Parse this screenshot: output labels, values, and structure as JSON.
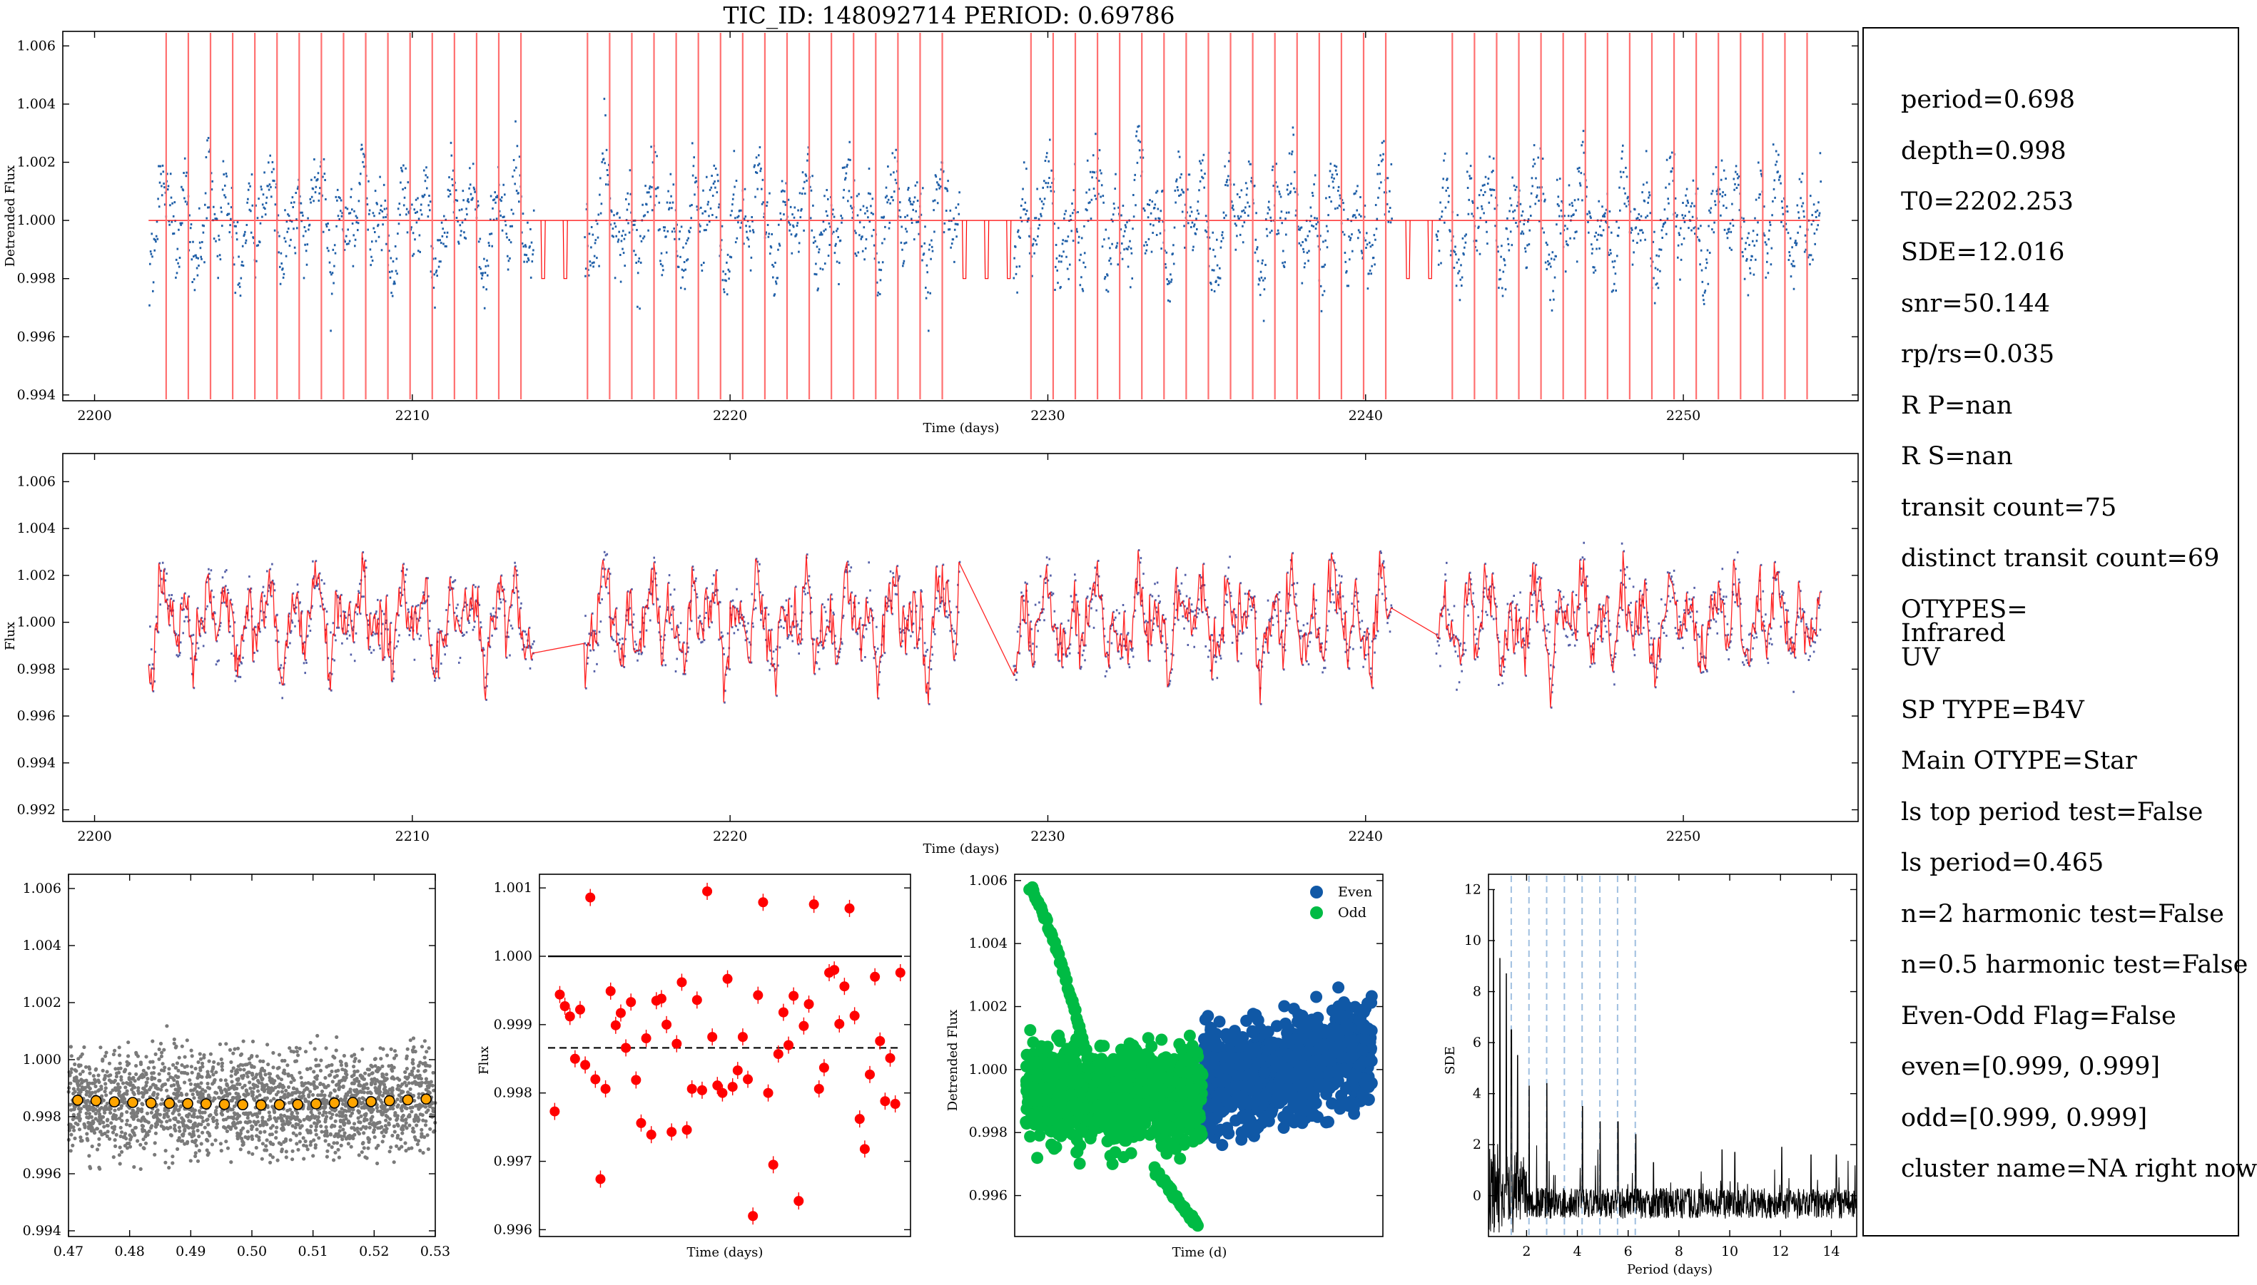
{
  "figure": {
    "title": "TIC_ID: 148092714 PERIOD: 0.69786"
  },
  "panels": {
    "p1": {
      "xlabel": "Time (days)",
      "ylabel": "Detrended Flux"
    },
    "p2": {
      "xlabel": "Time (days)",
      "ylabel": "Flux"
    },
    "p3": {
      "xlabel": "",
      "ylabel": ""
    },
    "p4": {
      "xlabel": "Time (days)",
      "ylabel": "Flux"
    },
    "p5": {
      "xlabel": "Time (d)",
      "ylabel": "Detrended Flux",
      "legend": [
        "Even",
        "Odd"
      ]
    },
    "p6": {
      "xlabel": "Period (days)",
      "ylabel": "SDE"
    }
  },
  "info": {
    "lines": [
      "period=0.698",
      "depth=0.998",
      "T0=2202.253",
      "SDE=12.016",
      "snr=50.144",
      "rp/rs=0.035",
      "R P=nan",
      "R S=nan",
      "transit count=75",
      "distinct transit count=69",
      "OTYPES=",
      "Infrared",
      "UV",
      "SP TYPE=B4V",
      "Main OTYPE=Star",
      "ls top period test=False",
      "ls period=0.465",
      "n=2 harmonic test=False",
      "n=0.5 harmonic test=False",
      "Even-Odd Flag=False",
      "even=[0.999, 0.999]",
      "odd=[0.999, 0.999]",
      "cluster name=NA right now"
    ]
  },
  "colors": {
    "lc": "#1f5fa8",
    "model": "#ff0000",
    "transit_line": "#ff7070",
    "gray": "#7a7a7a",
    "binned": "#ffa500",
    "even": "#1058a6",
    "odd": "#00bb44",
    "harmonic": "#9fbfe0"
  },
  "chart_data": [
    {
      "type": "scatter",
      "title": "TIC_ID: 148092714 PERIOD: 0.69786",
      "xlabel": "Time (days)",
      "ylabel": "Detrended Flux",
      "xlim": [
        2199,
        2255.5
      ],
      "ylim": [
        0.9938,
        1.0065
      ],
      "xticks": [
        2200,
        2210,
        2220,
        2230,
        2240,
        2250
      ],
      "yticks": [
        0.994,
        0.996,
        0.998,
        1.0,
        1.002,
        1.004,
        1.006
      ],
      "ytick_labels": [
        "0.994",
        "0.996",
        "0.998",
        "1.000",
        "1.002",
        "1.004",
        "1.006"
      ],
      "segments": [
        [
          2201.7,
          2213.8
        ],
        [
          2215.4,
          2227.2
        ],
        [
          2228.9,
          2240.8
        ],
        [
          2242.2,
          2254.3
        ]
      ],
      "transit_model": {
        "period": 0.69786,
        "t0": 2202.253,
        "depth": 0.998,
        "baseline": 1.0
      },
      "series": [
        {
          "name": "Detrended Flux",
          "values": "light curve (dense points)"
        }
      ]
    },
    {
      "type": "scatter",
      "xlabel": "Time (days)",
      "ylabel": "Flux",
      "xlim": [
        2199,
        2255.5
      ],
      "ylim": [
        0.9915,
        1.0072
      ],
      "xticks": [
        2200,
        2210,
        2220,
        2230,
        2240,
        2250
      ],
      "yticks": [
        0.992,
        0.994,
        0.996,
        0.998,
        1.0,
        1.002,
        1.004,
        1.006
      ],
      "ytick_labels": [
        "0.992",
        "0.994",
        "0.996",
        "0.998",
        "1.000",
        "1.002",
        "1.004",
        "1.006"
      ],
      "segments": [
        [
          2201.7,
          2213.8
        ],
        [
          2215.4,
          2227.2
        ],
        [
          2228.9,
          2240.8
        ],
        [
          2242.2,
          2254.3
        ]
      ]
    },
    {
      "type": "scatter",
      "xlim": [
        0.47,
        0.53
      ],
      "ylim": [
        0.9938,
        1.0065
      ],
      "xticks": [
        0.47,
        0.48,
        0.49,
        0.5,
        0.51,
        0.52,
        0.53
      ],
      "xtick_labels": [
        "0.47",
        "0.48",
        "0.49",
        "0.50",
        "0.51",
        "0.52",
        "0.53"
      ],
      "yticks": [
        0.994,
        0.996,
        0.998,
        1.0,
        1.002,
        1.004,
        1.006
      ],
      "ytick_labels": [
        "0.994",
        "0.996",
        "0.998",
        "1.000",
        "1.002",
        "1.004",
        "1.006"
      ],
      "binned": {
        "x": [
          0.4715,
          0.4745,
          0.4775,
          0.4805,
          0.4835,
          0.4865,
          0.4895,
          0.4925,
          0.4955,
          0.4985,
          0.5015,
          0.5045,
          0.5075,
          0.5105,
          0.5135,
          0.5165,
          0.5195,
          0.5225,
          0.5255,
          0.5285
        ],
        "y": [
          0.99858,
          0.99856,
          0.99852,
          0.9985,
          0.99848,
          0.99847,
          0.99846,
          0.99845,
          0.99843,
          0.99842,
          0.99841,
          0.99842,
          0.99843,
          0.99845,
          0.99848,
          0.9985,
          0.99853,
          0.99856,
          0.99859,
          0.99862
        ]
      }
    },
    {
      "type": "scatter",
      "xlabel": "Time (days)",
      "ylabel": "Flux",
      "ylim": [
        0.9959,
        1.0012
      ],
      "yticks": [
        0.996,
        0.997,
        0.998,
        0.999,
        1.0,
        1.001
      ],
      "ytick_labels": [
        "0.996",
        "0.997",
        "0.998",
        "0.999",
        "1.000",
        "1.001"
      ],
      "reference_line": 1.0,
      "mean_depth": 0.99866,
      "transit_depths": [
        0.99773,
        0.99944,
        0.99927,
        0.99912,
        0.9985,
        0.99922,
        0.99841,
        1.00086,
        0.9982,
        0.99674,
        0.99806,
        0.99949,
        0.99899,
        0.99917,
        0.99866,
        0.99933,
        0.99819,
        0.99756,
        0.9988,
        0.99739,
        0.99935,
        0.99938,
        0.999,
        0.99743,
        0.99872,
        0.99962,
        0.99746,
        0.99806,
        0.99936,
        0.99804,
        1.00095,
        0.99882,
        0.99811,
        0.998,
        0.99967,
        0.99809,
        0.99833,
        0.99882,
        0.9982,
        0.9962,
        0.99943,
        1.00079,
        0.998,
        0.99695,
        0.99857,
        0.99918,
        0.9987,
        0.99942,
        0.99642,
        0.99898,
        0.9993,
        1.00076,
        0.99806,
        0.99837,
        0.99976,
        0.9998,
        0.99901,
        0.99956,
        1.0007,
        0.99913,
        0.99762,
        0.99718,
        0.99827,
        0.9997,
        0.99876,
        0.99788,
        0.99851,
        0.99784,
        0.99976
      ]
    },
    {
      "type": "scatter",
      "xlabel": "Time (d)",
      "ylabel": "Detrended Flux",
      "ylim": [
        0.9947,
        1.0062
      ],
      "yticks": [
        0.996,
        0.998,
        1.0,
        1.002,
        1.004,
        1.006
      ],
      "ytick_labels": [
        "0.996",
        "0.998",
        "1.000",
        "1.002",
        "1.004",
        "1.006"
      ],
      "series": [
        {
          "name": "Even"
        },
        {
          "name": "Odd"
        }
      ]
    },
    {
      "type": "line",
      "xlabel": "Period (days)",
      "ylabel": "SDE",
      "xlim": [
        0.5,
        15
      ],
      "ylim": [
        -1.6,
        12.6
      ],
      "xticks": [
        2,
        4,
        6,
        8,
        10,
        12,
        14
      ],
      "yticks": [
        0,
        2,
        4,
        6,
        8,
        10,
        12
      ],
      "best_period": 0.69786,
      "harmonics": [
        1.396,
        2.094,
        2.791,
        3.489,
        4.187,
        4.885,
        5.583,
        6.281
      ],
      "peaks": [
        [
          0.7,
          12.0
        ],
        [
          0.95,
          9.3
        ],
        [
          1.2,
          8.7
        ],
        [
          1.4,
          6.5
        ],
        [
          1.65,
          5.5
        ],
        [
          2.1,
          4.3
        ],
        [
          2.8,
          4.4
        ],
        [
          4.2,
          3.5
        ],
        [
          4.9,
          2.9
        ],
        [
          5.6,
          2.9
        ],
        [
          6.3,
          2.4
        ],
        [
          7.0,
          1.3
        ],
        [
          9.7,
          1.8
        ],
        [
          10.2,
          1.7
        ],
        [
          12.05,
          1.9
        ],
        [
          13.2,
          1.6
        ],
        [
          14.2,
          1.6
        ]
      ]
    }
  ]
}
